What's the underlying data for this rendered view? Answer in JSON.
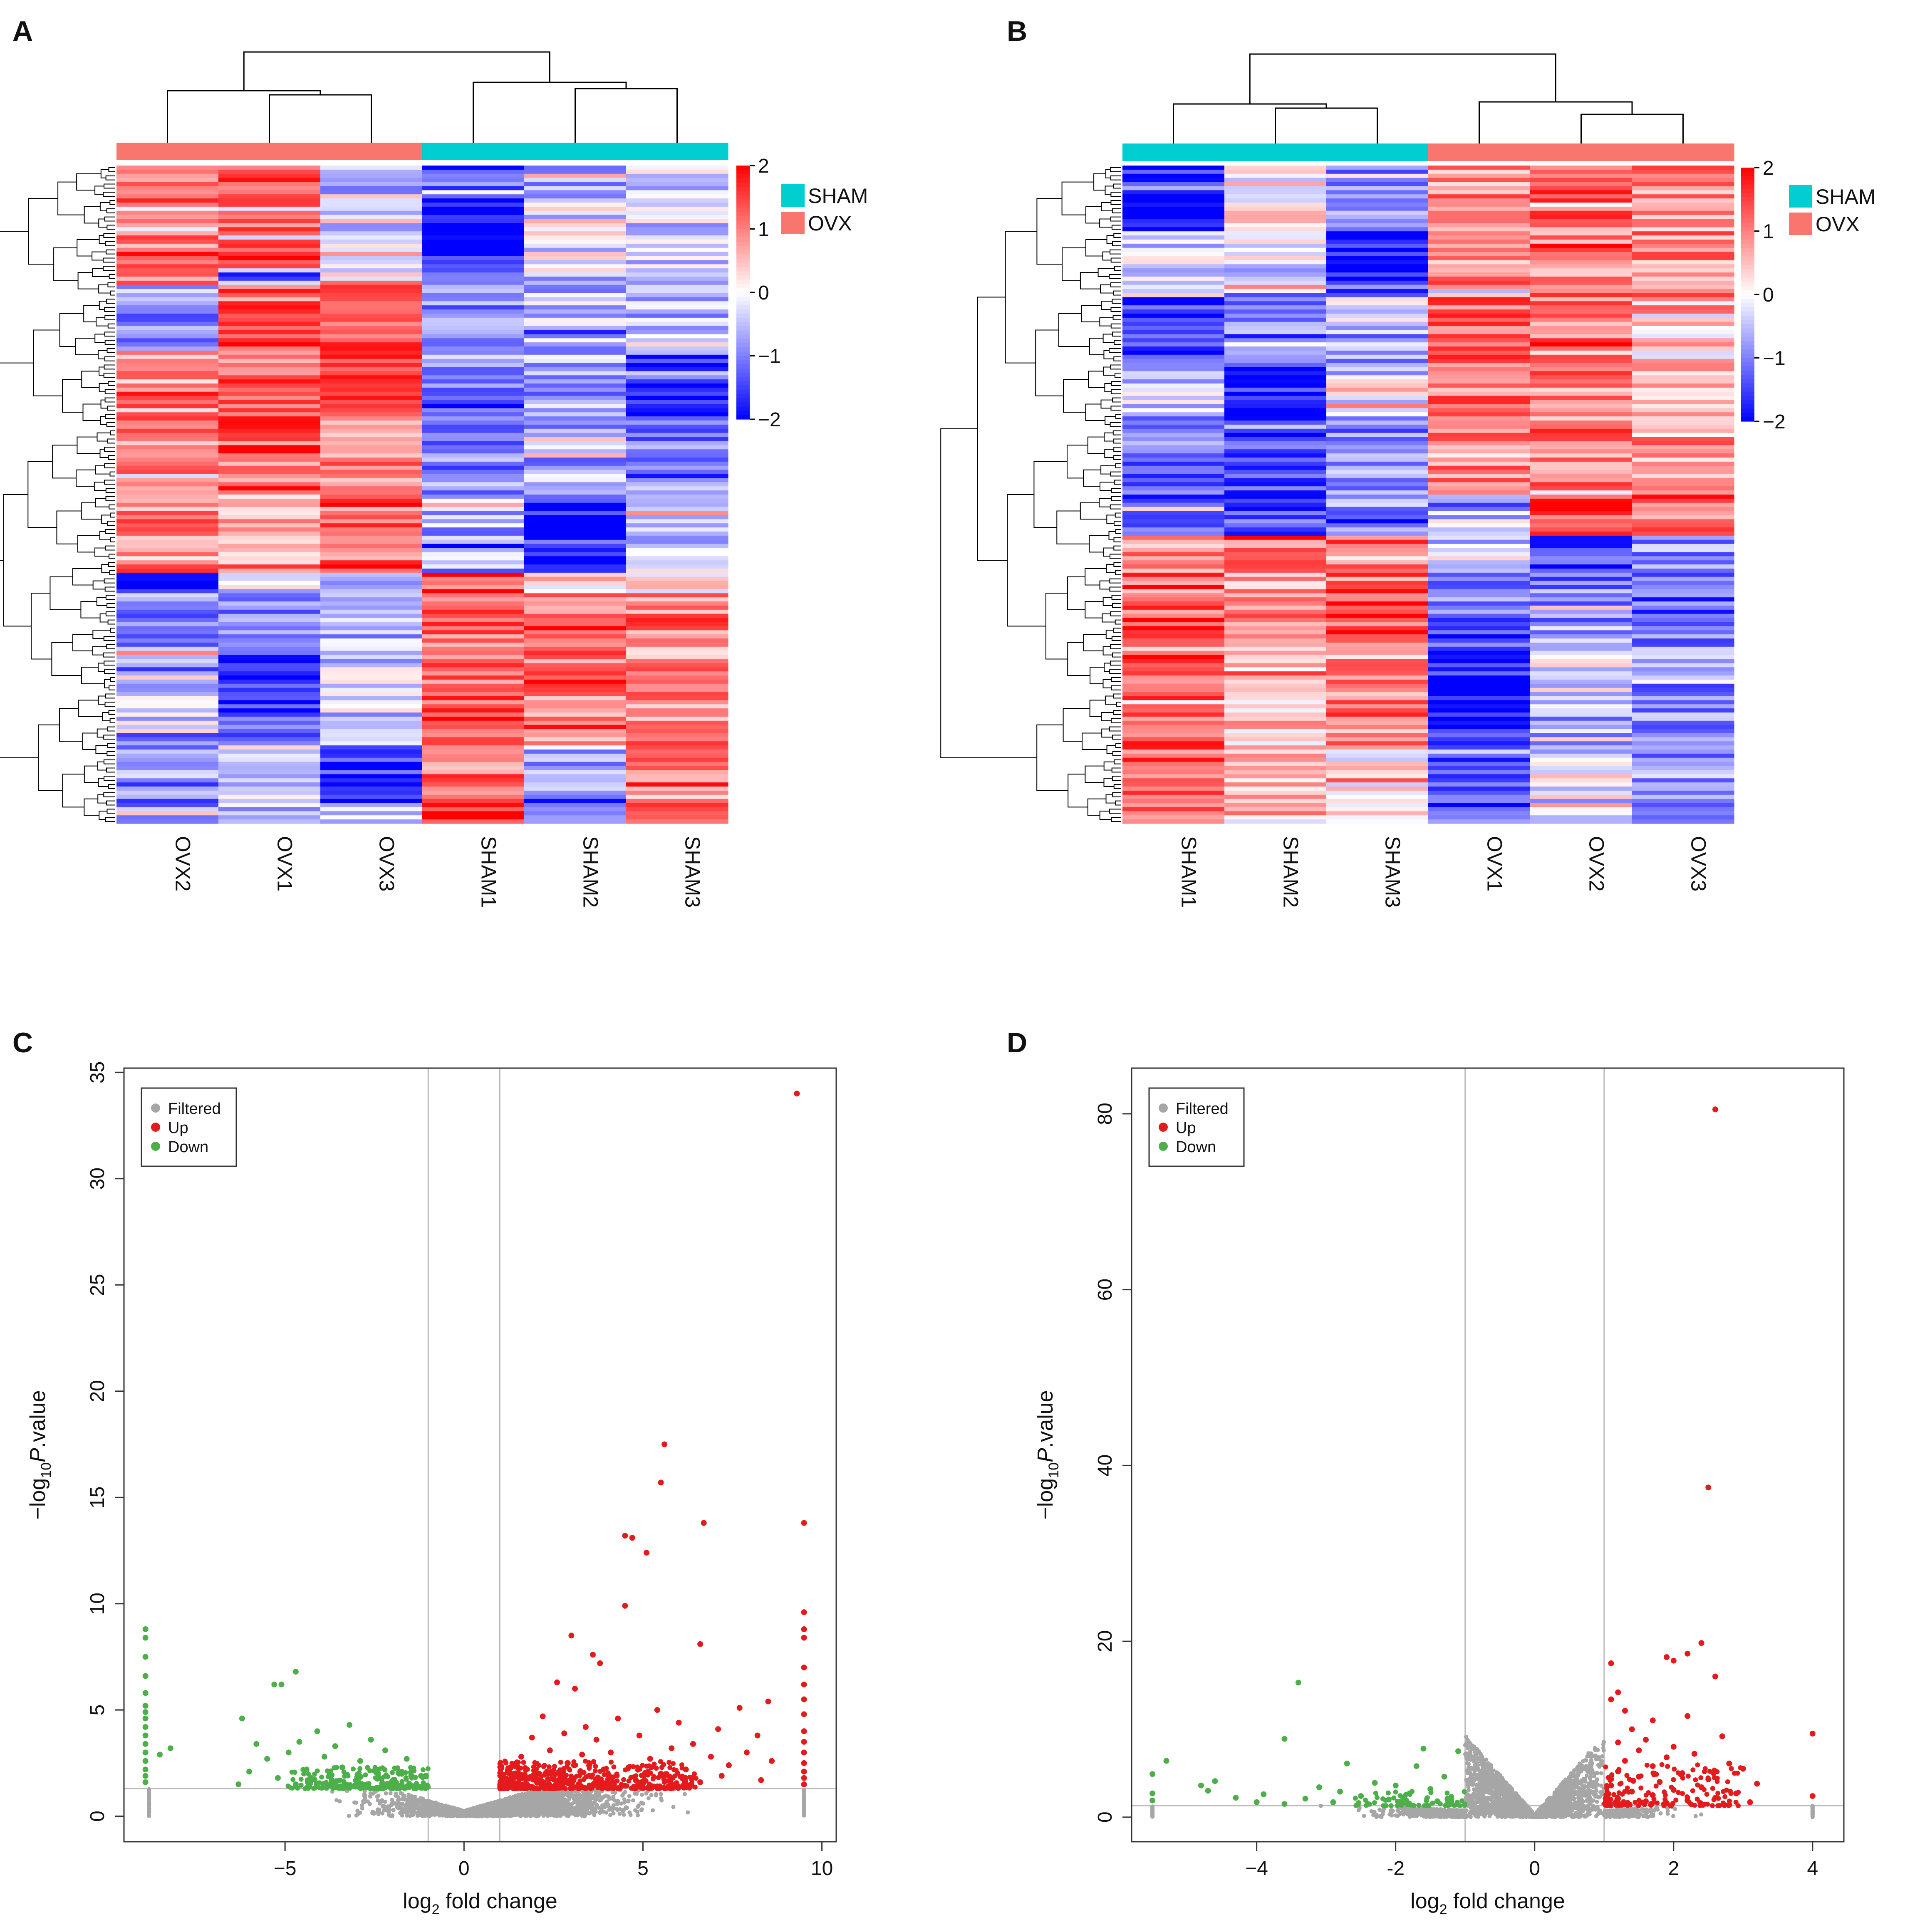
{
  "figure": {
    "panel_labels": [
      "A",
      "B",
      "C",
      "D"
    ],
    "colors": {
      "sham": "#00CED1",
      "ovx": "#F8766D",
      "high": "#FF0000",
      "mid": "#FFFFFF",
      "low": "#0000FF",
      "filtered": "#A6A6A6",
      "up": "#E41A1C",
      "down": "#4DAF4A",
      "frame": "#333333",
      "guide": "#BBBBBB"
    }
  },
  "chart_data": [
    {
      "type": "heatmap",
      "panel": "A",
      "samples": [
        "OVX2",
        "OVX1",
        "OVX3",
        "SHAM1",
        "SHAM2",
        "SHAM3"
      ],
      "groups": [
        "OVX",
        "OVX",
        "OVX",
        "SHAM",
        "SHAM",
        "SHAM"
      ],
      "legend": [
        "SHAM",
        "OVX"
      ],
      "color_scale": {
        "min": -2,
        "max": 2,
        "ticks": [
          "2",
          "1",
          "0",
          "−1",
          "−2"
        ]
      },
      "row_count": 160,
      "blocks": [
        {
          "upto": 0.05,
          "means": [
            1.3,
            1.4,
            -0.5,
            -1.4,
            -0.6,
            -0.5
          ]
        },
        {
          "upto": 0.16,
          "means": [
            1.1,
            1.0,
            -0.4,
            -1.9,
            -0.2,
            -0.4
          ]
        },
        {
          "upto": 0.18,
          "means": [
            1.0,
            -1.1,
            0.9,
            -0.9,
            -0.5,
            -0.6
          ]
        },
        {
          "upto": 0.28,
          "means": [
            -0.8,
            1.2,
            1.3,
            -0.8,
            -0.5,
            -0.7
          ]
        },
        {
          "upto": 0.38,
          "means": [
            0.9,
            1.1,
            1.2,
            -0.9,
            -0.8,
            -1.8
          ]
        },
        {
          "upto": 0.5,
          "means": [
            1.0,
            1.4,
            0.9,
            -0.9,
            -0.7,
            -0.9
          ]
        },
        {
          "upto": 0.62,
          "means": [
            1.0,
            0.8,
            1.1,
            -0.7,
            -1.9,
            -0.4
          ]
        },
        {
          "upto": 0.65,
          "means": [
            -1.9,
            -0.2,
            -0.6,
            1.4,
            0.7,
            0.3
          ]
        },
        {
          "upto": 0.73,
          "means": [
            -0.9,
            -0.8,
            -0.6,
            1.1,
            1.2,
            1.1
          ]
        },
        {
          "upto": 0.88,
          "means": [
            -0.3,
            -1.5,
            -0.4,
            1.2,
            1.0,
            0.9
          ]
        },
        {
          "upto": 0.97,
          "means": [
            -1.0,
            -0.2,
            -1.7,
            1.1,
            -0.6,
            1.1
          ]
        },
        {
          "upto": 1.0,
          "means": [
            -0.8,
            -0.6,
            -0.6,
            1.9,
            -0.6,
            1.0
          ]
        }
      ]
    },
    {
      "type": "heatmap",
      "panel": "B",
      "samples": [
        "SHAM1",
        "SHAM2",
        "SHAM3",
        "OVX1",
        "OVX2",
        "OVX3"
      ],
      "groups": [
        "SHAM",
        "SHAM",
        "SHAM",
        "OVX",
        "OVX",
        "OVX"
      ],
      "legend": [
        "SHAM",
        "OVX"
      ],
      "color_scale": {
        "min": -2,
        "max": 2,
        "ticks": [
          "2",
          "1",
          "0",
          "−1",
          "−2"
        ]
      },
      "row_count": 160,
      "blocks": [
        {
          "upto": 0.1,
          "means": [
            -1.8,
            0.1,
            -1.0,
            0.9,
            1.2,
            0.9
          ]
        },
        {
          "upto": 0.2,
          "means": [
            -0.3,
            -0.3,
            -1.9,
            0.8,
            1.0,
            0.9
          ]
        },
        {
          "upto": 0.3,
          "means": [
            -1.6,
            -0.9,
            -0.4,
            1.2,
            1.1,
            0.3
          ]
        },
        {
          "upto": 0.38,
          "means": [
            -0.4,
            -1.8,
            -0.3,
            1.1,
            1.0,
            0.8
          ]
        },
        {
          "upto": 0.5,
          "means": [
            -1.1,
            -1.4,
            -0.9,
            0.9,
            1.1,
            0.8
          ]
        },
        {
          "upto": 0.56,
          "means": [
            -0.9,
            -1.3,
            -0.8,
            -0.2,
            1.6,
            1.0
          ]
        },
        {
          "upto": 0.62,
          "means": [
            0.9,
            1.0,
            1.2,
            -0.3,
            -1.6,
            -0.8
          ]
        },
        {
          "upto": 0.73,
          "means": [
            1.3,
            0.9,
            1.4,
            -1.1,
            -0.9,
            -1.2
          ]
        },
        {
          "upto": 0.88,
          "means": [
            1.2,
            0.5,
            0.8,
            -1.8,
            -0.2,
            -0.9
          ]
        },
        {
          "upto": 1.0,
          "means": [
            1.3,
            0.7,
            0.1,
            -1.4,
            -0.1,
            -0.8
          ]
        }
      ]
    },
    {
      "type": "scatter",
      "panel": "C",
      "xlabel_main": "log",
      "xlabel_sub": "2",
      "xlabel_rest": " fold change",
      "ylabel_main": "−log",
      "ylabel_sub": "10",
      "ylabel_p": "P",
      "ylabel_rest": ".value",
      "xlim": [
        -9.5,
        10.4
      ],
      "ylim": [
        -1.2,
        35.2
      ],
      "xticks": [
        -5,
        0,
        5,
        10
      ],
      "yticks": [
        0,
        5,
        10,
        15,
        20,
        25,
        30,
        35
      ],
      "xtick_labels": [
        "−5",
        "0",
        "5",
        "10"
      ],
      "ytick_labels": [
        "0",
        "5",
        "10",
        "15",
        "20",
        "25",
        "30",
        "35"
      ],
      "vlines": [
        -1,
        1
      ],
      "hline": 1.3,
      "legend": [
        "Filtered",
        "Up",
        "Down"
      ],
      "filtered_density": {
        "x_range": [
          -6.5,
          8.6
        ],
        "count": 2600,
        "edge_x": [
          -8.8,
          9.5
        ]
      },
      "up_points": [
        [
          9.3,
          34.0
        ],
        [
          5.6,
          17.5
        ],
        [
          5.5,
          15.7
        ],
        [
          9.5,
          13.8
        ],
        [
          6.7,
          13.8
        ],
        [
          4.5,
          13.2
        ],
        [
          4.7,
          13.1
        ],
        [
          5.1,
          12.4
        ],
        [
          4.5,
          9.9
        ],
        [
          9.5,
          9.6
        ],
        [
          9.5,
          8.8
        ],
        [
          3.0,
          8.5
        ],
        [
          9.5,
          8.4
        ],
        [
          6.6,
          8.1
        ],
        [
          3.6,
          7.6
        ],
        [
          3.8,
          7.2
        ],
        [
          9.5,
          7.0
        ],
        [
          2.6,
          6.3
        ],
        [
          9.5,
          6.2
        ],
        [
          3.1,
          6.0
        ],
        [
          9.5,
          5.5
        ],
        [
          8.5,
          5.4
        ],
        [
          7.7,
          5.1
        ],
        [
          5.4,
          5.0
        ],
        [
          9.5,
          4.8
        ],
        [
          2.2,
          4.7
        ],
        [
          4.3,
          4.6
        ],
        [
          6.0,
          4.4
        ],
        [
          3.4,
          4.2
        ],
        [
          7.1,
          4.1
        ],
        [
          9.5,
          4.0
        ],
        [
          2.8,
          3.9
        ],
        [
          4.9,
          3.8
        ],
        [
          8.2,
          3.8
        ],
        [
          1.9,
          3.7
        ],
        [
          3.7,
          3.6
        ],
        [
          9.5,
          3.5
        ],
        [
          6.4,
          3.4
        ],
        [
          5.8,
          3.2
        ],
        [
          2.4,
          3.1
        ],
        [
          7.9,
          3.0
        ],
        [
          4.1,
          3.0
        ],
        [
          9.5,
          3.0
        ],
        [
          3.3,
          2.9
        ],
        [
          6.9,
          2.8
        ],
        [
          1.6,
          2.8
        ],
        [
          5.2,
          2.7
        ],
        [
          8.6,
          2.6
        ],
        [
          9.5,
          2.5
        ],
        [
          2.9,
          2.5
        ],
        [
          7.4,
          2.4
        ],
        [
          4.6,
          2.3
        ],
        [
          1.3,
          2.3
        ],
        [
          3.9,
          2.2
        ],
        [
          6.2,
          2.2
        ],
        [
          9.5,
          2.1
        ],
        [
          2.1,
          2.0
        ],
        [
          5.5,
          2.0
        ],
        [
          7.2,
          1.9
        ],
        [
          3.5,
          1.9
        ],
        [
          1.1,
          1.9
        ],
        [
          9.5,
          1.8
        ],
        [
          8.3,
          1.7
        ],
        [
          4.8,
          1.7
        ],
        [
          2.6,
          1.6
        ],
        [
          6.6,
          1.6
        ],
        [
          1.5,
          1.5
        ],
        [
          9.5,
          1.5
        ],
        [
          3.2,
          1.5
        ],
        [
          5.9,
          1.4
        ]
      ],
      "up_band": {
        "x_range": [
          1.0,
          6.5
        ],
        "y_range": [
          1.3,
          2.6
        ],
        "count": 560
      },
      "down_points": [
        [
          -8.9,
          8.8
        ],
        [
          -8.9,
          8.4
        ],
        [
          -8.9,
          7.5
        ],
        [
          -8.9,
          6.6
        ],
        [
          -4.7,
          6.8
        ],
        [
          -5.1,
          6.2
        ],
        [
          -5.3,
          6.2
        ],
        [
          -8.9,
          5.8
        ],
        [
          -8.9,
          5.2
        ],
        [
          -8.9,
          4.9
        ],
        [
          -8.9,
          4.6
        ],
        [
          -6.2,
          4.6
        ],
        [
          -3.2,
          4.3
        ],
        [
          -8.9,
          4.2
        ],
        [
          -4.1,
          4.0
        ],
        [
          -8.9,
          3.8
        ],
        [
          -2.6,
          3.6
        ],
        [
          -4.6,
          3.5
        ],
        [
          -8.9,
          3.4
        ],
        [
          -5.8,
          3.4
        ],
        [
          -3.6,
          3.3
        ],
        [
          -8.2,
          3.2
        ],
        [
          -8.9,
          3.0
        ],
        [
          -2.2,
          3.1
        ],
        [
          -4.9,
          3.0
        ],
        [
          -8.5,
          2.9
        ],
        [
          -3.9,
          2.8
        ],
        [
          -8.9,
          2.6
        ],
        [
          -1.6,
          2.7
        ],
        [
          -5.5,
          2.7
        ],
        [
          -2.9,
          2.6
        ],
        [
          -8.9,
          2.2
        ],
        [
          -3.4,
          2.3
        ],
        [
          -4.4,
          2.2
        ],
        [
          -6.0,
          2.1
        ],
        [
          -8.9,
          1.9
        ],
        [
          -2.4,
          2.0
        ],
        [
          -1.2,
          1.9
        ],
        [
          -5.2,
          1.8
        ],
        [
          -8.9,
          1.6
        ],
        [
          -3.7,
          1.7
        ],
        [
          -1.9,
          1.6
        ],
        [
          -4.7,
          1.5
        ],
        [
          -2.7,
          1.5
        ],
        [
          -6.3,
          1.5
        ],
        [
          -1.4,
          1.4
        ]
      ],
      "down_band": {
        "x_range": [
          -5.0,
          -1.0
        ],
        "y_range": [
          1.3,
          2.3
        ],
        "count": 260
      }
    },
    {
      "type": "scatter",
      "panel": "D",
      "xlabel_main": "log",
      "xlabel_sub": "2",
      "xlabel_rest": " fold change",
      "ylabel_main": "−log",
      "ylabel_sub": "10",
      "ylabel_p": "P",
      "ylabel_rest": ".value",
      "xlim": [
        -5.8,
        4.45
      ],
      "ylim": [
        -2.8,
        85.2
      ],
      "xticks": [
        -4,
        -2,
        0,
        2,
        4
      ],
      "yticks": [
        0,
        20,
        40,
        60,
        80
      ],
      "xtick_labels": [
        "−4",
        "-2",
        "0",
        "2",
        "4"
      ],
      "ytick_labels": [
        "0",
        "20",
        "40",
        "60",
        "80"
      ],
      "vlines": [
        -1,
        1
      ],
      "hline": 1.3,
      "legend": [
        "Filtered",
        "Up",
        "Down"
      ],
      "filtered_density": {
        "x_range": [
          -4.0,
          3.6
        ],
        "count": 2600,
        "edge_x": [
          -5.5,
          4.0
        ]
      },
      "up_points": [
        [
          2.6,
          80.5
        ],
        [
          2.5,
          37.5
        ],
        [
          2.4,
          19.8
        ],
        [
          2.2,
          18.6
        ],
        [
          1.9,
          18.2
        ],
        [
          2.0,
          17.8
        ],
        [
          1.1,
          17.5
        ],
        [
          2.6,
          16.0
        ],
        [
          1.2,
          14.2
        ],
        [
          1.1,
          13.4
        ],
        [
          1.3,
          12.1
        ],
        [
          2.2,
          11.5
        ],
        [
          1.7,
          11.0
        ],
        [
          1.4,
          10.0
        ],
        [
          4.0,
          9.5
        ],
        [
          2.7,
          9.2
        ],
        [
          1.6,
          8.8
        ],
        [
          1.2,
          8.5
        ],
        [
          2.0,
          8.0
        ],
        [
          1.5,
          7.6
        ],
        [
          2.3,
          7.2
        ],
        [
          1.9,
          6.8
        ],
        [
          1.3,
          6.4
        ],
        [
          2.8,
          6.1
        ],
        [
          1.7,
          5.8
        ],
        [
          3.0,
          5.5
        ],
        [
          1.2,
          5.2
        ],
        [
          2.1,
          4.9
        ],
        [
          1.5,
          4.6
        ],
        [
          2.5,
          4.3
        ],
        [
          1.8,
          4.0
        ],
        [
          3.2,
          3.8
        ],
        [
          1.1,
          3.6
        ],
        [
          2.4,
          3.4
        ],
        [
          2.0,
          3.1
        ],
        [
          1.4,
          2.9
        ],
        [
          2.9,
          2.7
        ],
        [
          1.7,
          2.5
        ],
        [
          4.0,
          2.4
        ],
        [
          2.6,
          2.2
        ],
        [
          1.2,
          2.1
        ],
        [
          2.2,
          1.9
        ],
        [
          1.6,
          1.8
        ],
        [
          3.1,
          1.7
        ],
        [
          1.9,
          1.6
        ],
        [
          2.4,
          1.5
        ],
        [
          1.3,
          1.5
        ],
        [
          2.8,
          1.4
        ]
      ],
      "up_band": {
        "x_range": [
          1.0,
          3.0
        ],
        "y_range": [
          1.3,
          6.0
        ],
        "count": 170
      },
      "down_points": [
        [
          -3.4,
          15.3
        ],
        [
          -3.6,
          8.9
        ],
        [
          -1.6,
          7.8
        ],
        [
          -1.1,
          7.5
        ],
        [
          -5.3,
          6.4
        ],
        [
          -2.7,
          6.1
        ],
        [
          -1.7,
          5.8
        ],
        [
          -5.5,
          4.9
        ],
        [
          -4.6,
          4.1
        ],
        [
          -1.3,
          4.6
        ],
        [
          -4.8,
          3.6
        ],
        [
          -2.3,
          3.9
        ],
        [
          -3.1,
          3.4
        ],
        [
          -2.0,
          3.6
        ],
        [
          -4.7,
          3.0
        ],
        [
          -1.5,
          3.2
        ],
        [
          -2.8,
          2.9
        ],
        [
          -5.5,
          2.7
        ],
        [
          -3.9,
          2.6
        ],
        [
          -1.8,
          2.7
        ],
        [
          -2.5,
          2.4
        ],
        [
          -4.3,
          2.2
        ],
        [
          -1.2,
          2.3
        ],
        [
          -3.3,
          2.1
        ],
        [
          -2.1,
          2.0
        ],
        [
          -5.5,
          1.9
        ],
        [
          -1.4,
          1.8
        ],
        [
          -4.0,
          1.7
        ],
        [
          -2.9,
          1.7
        ],
        [
          -1.9,
          1.6
        ],
        [
          -3.6,
          1.5
        ],
        [
          -2.4,
          1.5
        ]
      ],
      "down_band": {
        "x_range": [
          -2.6,
          -1.0
        ],
        "y_range": [
          1.3,
          3.0
        ],
        "count": 70
      }
    }
  ]
}
